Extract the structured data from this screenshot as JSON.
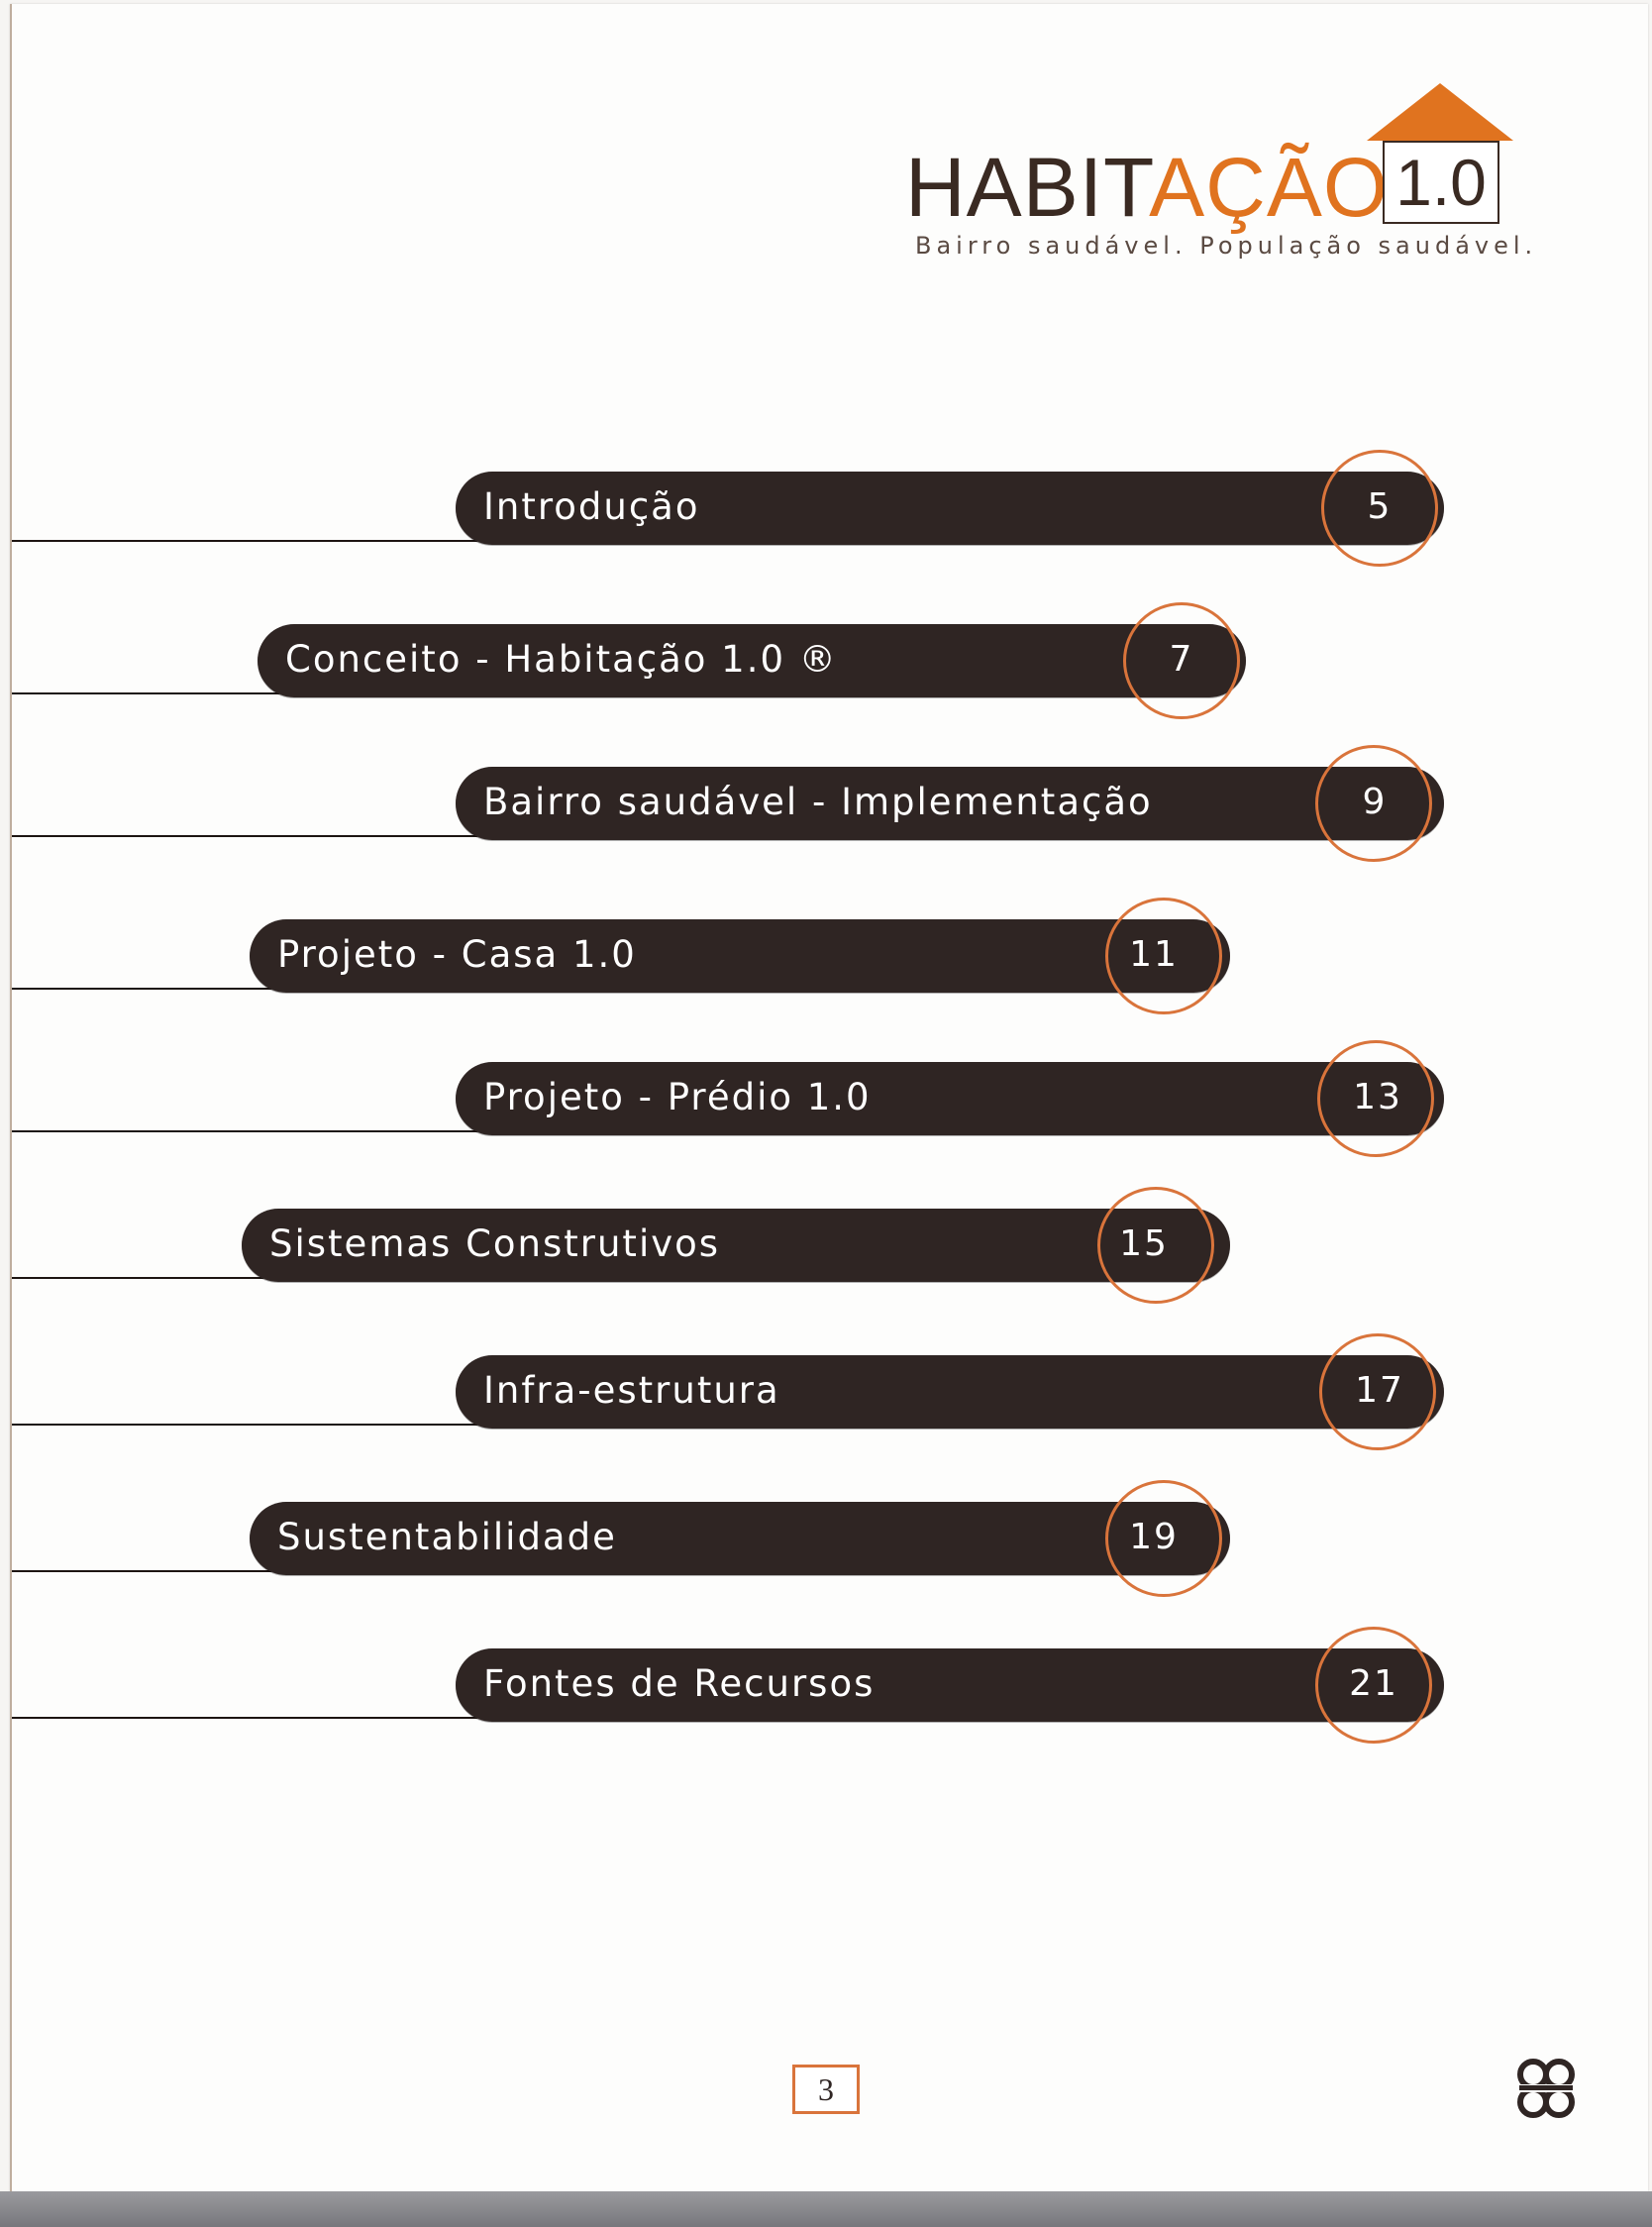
{
  "logo": {
    "title_dark": "HABIT",
    "title_orange": "AÇÃO",
    "version": "1.0",
    "tagline": "Bairro saudável. População saudável.",
    "icon": "house-roof-icon"
  },
  "toc": {
    "entries": [
      {
        "label": "Introdução",
        "page": "5"
      },
      {
        "label": "Conceito - Habitação 1.0 ®",
        "page": "7"
      },
      {
        "label": "Bairro saudável - Implementação",
        "page": "9"
      },
      {
        "label": "Projeto - Casa 1.0",
        "page": "11"
      },
      {
        "label": "Projeto - Prédio 1.0",
        "page": "13"
      },
      {
        "label": "Sistemas Construtivos",
        "page": "15"
      },
      {
        "label": "Infra-estrutura",
        "page": "17"
      },
      {
        "label": "Sustentabilidade",
        "page": "19"
      },
      {
        "label": "Fontes de Recursos",
        "page": "21"
      }
    ]
  },
  "footer": {
    "page_number": "3",
    "publisher_icon": "publisher-logo-icon"
  },
  "colors": {
    "accent_orange": "#e0731f",
    "pill_dark": "#2f2523",
    "ring_orange": "#d9743b"
  }
}
